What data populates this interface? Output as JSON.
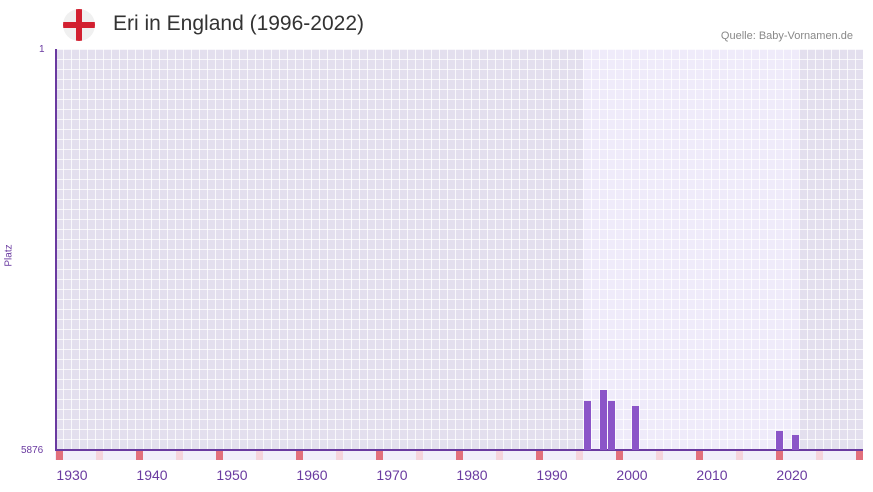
{
  "header": {
    "title": "Eri in England (1996-2022)",
    "source": "Quelle: Baby-Vornamen.de",
    "flag_icon": "england-flag-icon"
  },
  "colors": {
    "bar": "#8b55c8",
    "axis": "#6a3aa0",
    "decade_marker": "#e2707c",
    "halfdecade_marker": "#f5d4dc",
    "bg_out_of_range": "#e3dfee",
    "bg_in_range": "#efebfa"
  },
  "chart_data": {
    "type": "bar",
    "title": "Eri in England (1996-2022)",
    "xlabel": "",
    "ylabel": "Platz",
    "y_inverted": true,
    "ylim": [
      5876,
      1
    ],
    "y_ticks": [
      "1",
      "5876"
    ],
    "x_ticks": [
      1930,
      1940,
      1950,
      1960,
      1970,
      1980,
      1990,
      2000,
      2010,
      2020
    ],
    "xlim": [
      1928,
      2028
    ],
    "highlighted_range": [
      1994,
      2021
    ],
    "grid": true,
    "legend": null,
    "categories": [
      1994,
      1996,
      1997,
      2000,
      2018,
      2020
    ],
    "values": [
      5158,
      4992,
      5158,
      5225,
      5598,
      5657
    ]
  },
  "axis": {
    "y_top": "1",
    "y_bottom": "5876",
    "y_label": "Platz",
    "x_labels": [
      "1930",
      "1940",
      "1950",
      "1960",
      "1970",
      "1980",
      "1990",
      "2000",
      "2010",
      "2020"
    ]
  }
}
